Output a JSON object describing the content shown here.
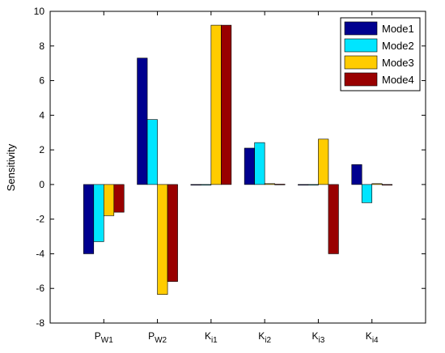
{
  "chart_data": {
    "type": "bar",
    "title": "",
    "xlabel": "",
    "ylabel": "Sensitivity",
    "ylim": [
      -8,
      10
    ],
    "yticks": [
      -8,
      -6,
      -4,
      -2,
      0,
      2,
      4,
      6,
      8,
      10
    ],
    "grid": false,
    "legend_position": "top-right",
    "categories": [
      {
        "base": "P",
        "sub": "W1"
      },
      {
        "base": "P",
        "sub": "W2"
      },
      {
        "base": "K",
        "sub": "i1"
      },
      {
        "base": "K",
        "sub": "i2"
      },
      {
        "base": "K",
        "sub": "i3"
      },
      {
        "base": "K",
        "sub": "i4"
      }
    ],
    "series": [
      {
        "name": "Mode1",
        "color": "#00008F",
        "values": [
          -4.0,
          7.3,
          0.0,
          2.1,
          0.0,
          1.15
        ]
      },
      {
        "name": "Mode2",
        "color": "#00E5FF",
        "values": [
          -3.3,
          3.75,
          0.0,
          2.42,
          0.0,
          -1.05
        ]
      },
      {
        "name": "Mode3",
        "color": "#FFCC00",
        "values": [
          -1.8,
          -6.35,
          9.2,
          0.05,
          2.62,
          0.05
        ]
      },
      {
        "name": "Mode4",
        "color": "#990000",
        "values": [
          -1.6,
          -5.6,
          9.2,
          0.02,
          -4.0,
          0.0
        ]
      }
    ]
  }
}
